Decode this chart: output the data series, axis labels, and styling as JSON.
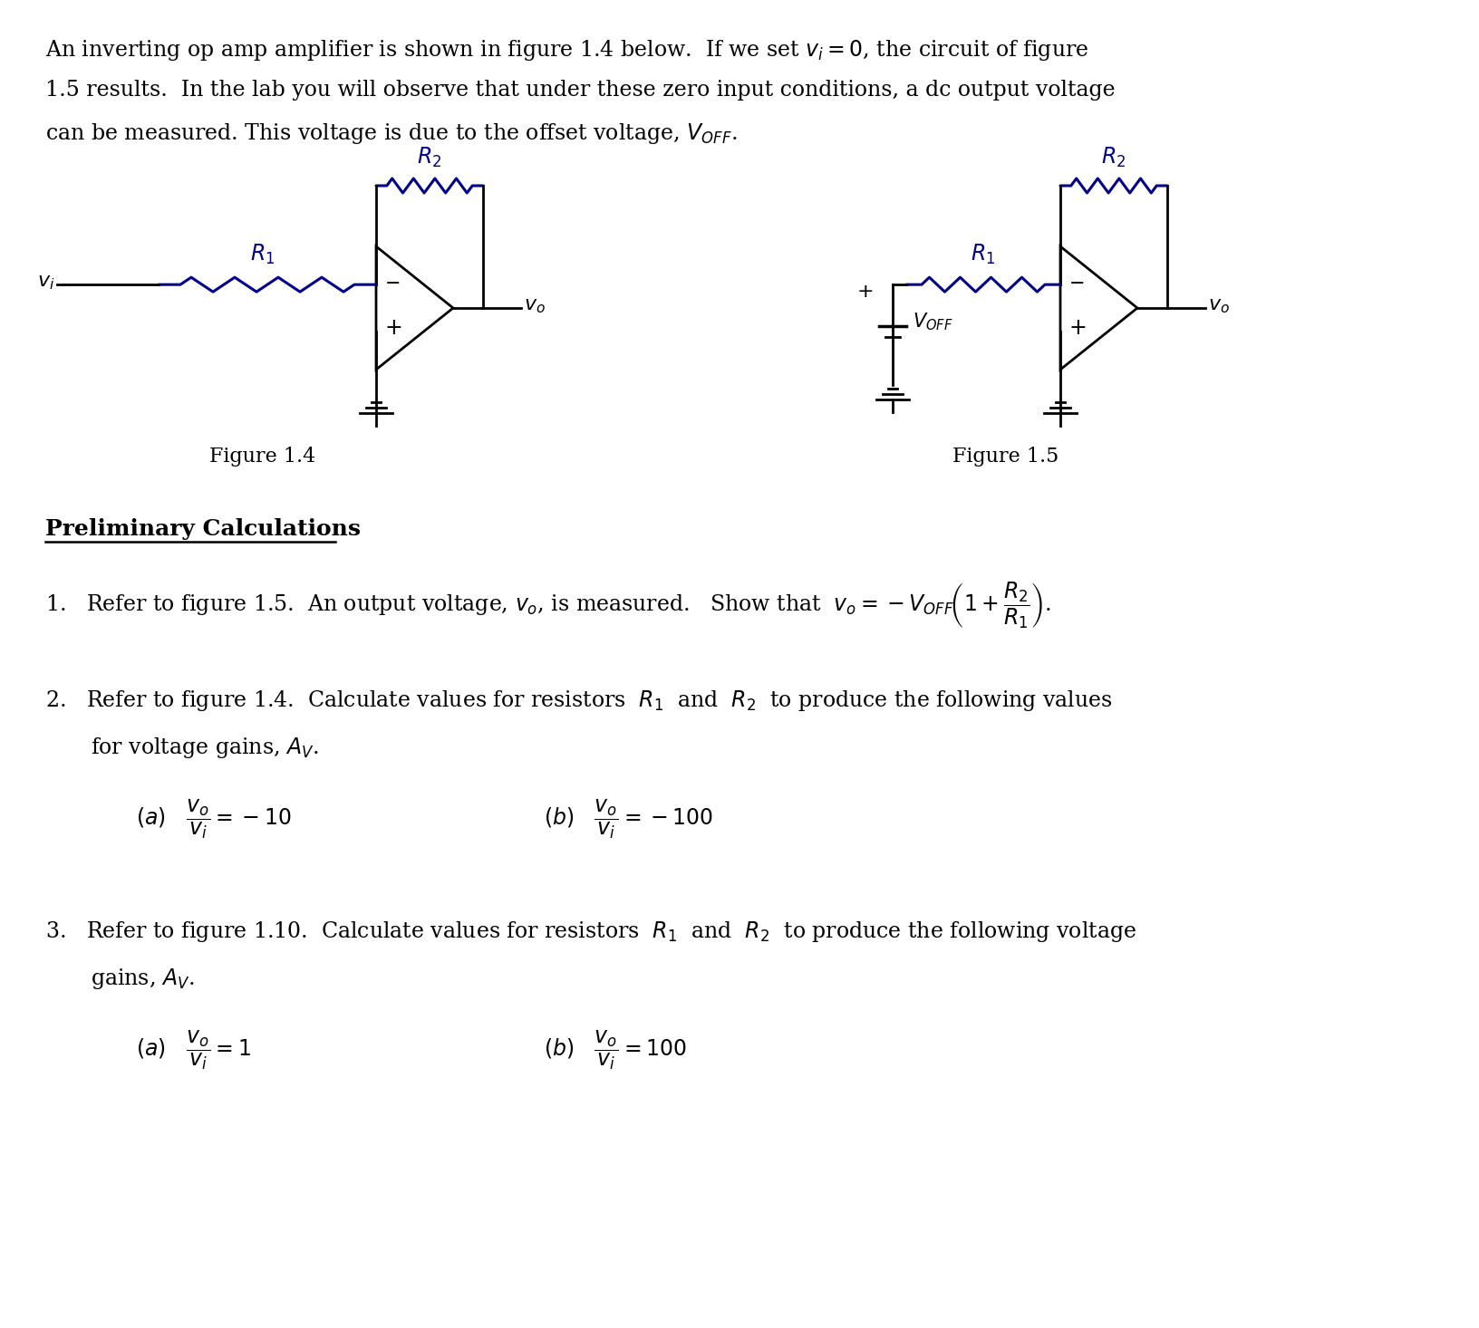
{
  "bg_color": "#ffffff",
  "text_color": "#000000",
  "blue_color": "#00008B",
  "fig14_label": "Figure 1.4",
  "fig15_label": "Figure 1.5",
  "prelim_title": "Preliminary Calculations"
}
